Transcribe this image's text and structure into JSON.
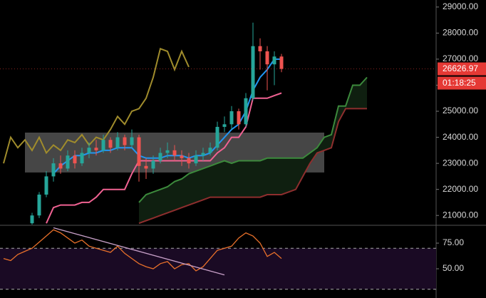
{
  "chart_data": [
    {
      "type": "candlestick",
      "xlim": [
        -0.5,
        60.7
      ],
      "ylim": [
        20650,
        29270
      ],
      "yticks": [
        {
          "value": 21000,
          "label": "21000.00"
        },
        {
          "value": 22000,
          "label": "22000.00"
        },
        {
          "value": 23000,
          "label": "23000.00"
        },
        {
          "value": 24000,
          "label": "24000.00"
        },
        {
          "value": 25000,
          "label": "25000.00"
        },
        {
          "value": 26000,
          "label": "26000.00"
        },
        {
          "value": 27000,
          "label": "27000.00"
        },
        {
          "value": 28000,
          "label": "28000.00"
        },
        {
          "value": 29000,
          "label": "29000.00"
        }
      ],
      "up_color": "#26a69a",
      "down_color": "#ef5350",
      "open": [
        null,
        null,
        null,
        null,
        20700,
        21000,
        21800,
        22500,
        23000,
        22800,
        23300,
        23000,
        23400,
        23600,
        23500,
        23900,
        23600,
        24000,
        23700,
        24000,
        22900,
        22800,
        23100,
        23400,
        23500,
        23300,
        23200,
        23000,
        23300,
        23400,
        23600,
        24400,
        24500,
        25000,
        24500,
        25500,
        27500,
        27300,
        26800,
        27100,
        null,
        null,
        null,
        null,
        null,
        null,
        null,
        null,
        null,
        null,
        null,
        null
      ],
      "high": [
        null,
        null,
        null,
        null,
        21100,
        21900,
        22700,
        23200,
        23300,
        23500,
        23500,
        23600,
        23800,
        23900,
        24100,
        24000,
        24200,
        24100,
        24300,
        24100,
        23200,
        23300,
        23600,
        23800,
        23700,
        23500,
        23400,
        23500,
        23600,
        23800,
        24600,
        24800,
        25200,
        25100,
        25700,
        28400,
        27800,
        27500,
        27300,
        27200,
        null,
        null,
        null,
        null,
        null,
        null,
        null,
        null,
        null,
        null,
        null,
        null
      ],
      "low": [
        null,
        null,
        null,
        null,
        20650,
        20900,
        21700,
        22300,
        22600,
        22700,
        22800,
        22900,
        23200,
        23300,
        23400,
        23400,
        23500,
        23500,
        23600,
        22300,
        22400,
        22600,
        23000,
        23200,
        23100,
        22900,
        22800,
        22900,
        23100,
        23300,
        23500,
        24200,
        24300,
        24300,
        24400,
        25400,
        26600,
        25800,
        26000,
        26500,
        null,
        null,
        null,
        null,
        null,
        null,
        null,
        null,
        null,
        null,
        null,
        null
      ],
      "close": [
        null,
        null,
        null,
        null,
        21000,
        21800,
        22500,
        23000,
        22800,
        23300,
        23000,
        23400,
        23600,
        23500,
        23900,
        23600,
        24000,
        23700,
        24000,
        22900,
        22800,
        23100,
        23400,
        23500,
        23300,
        23200,
        23000,
        23300,
        23400,
        23600,
        24400,
        24500,
        25000,
        24500,
        25500,
        27500,
        27300,
        26800,
        27100,
        26626.97,
        null,
        null,
        null,
        null,
        null,
        null,
        null,
        null,
        null,
        null,
        null,
        null
      ],
      "series": [
        {
          "color": "#2196f3",
          "values": [
            null,
            null,
            null,
            null,
            null,
            null,
            null,
            22600,
            22900,
            23100,
            23300,
            23300,
            23400,
            23400,
            23500,
            23500,
            23600,
            23600,
            23600,
            23300,
            23200,
            23200,
            23200,
            23300,
            23300,
            23300,
            23200,
            23300,
            23300,
            23400,
            23700,
            24000,
            24300,
            24500,
            25000,
            25800,
            26300,
            26600,
            27000,
            27000,
            null,
            null,
            null,
            null,
            null,
            null,
            null,
            null,
            null,
            null,
            null,
            null
          ]
        },
        {
          "color": "#f06292",
          "values": [
            null,
            null,
            null,
            null,
            null,
            null,
            20700,
            21300,
            21400,
            21400,
            21400,
            21500,
            21500,
            21700,
            22000,
            22000,
            22000,
            22000,
            22600,
            23100,
            23100,
            23100,
            23100,
            23100,
            23100,
            23100,
            23100,
            23100,
            23100,
            23100,
            23400,
            23600,
            24000,
            24000,
            24400,
            25500,
            25500,
            25500,
            25600,
            25700,
            null,
            null,
            null,
            null,
            null,
            null,
            null,
            null,
            null,
            null,
            null,
            null
          ]
        },
        {
          "color": "#a08c2c",
          "values": [
            23000,
            24000,
            23600,
            23900,
            23500,
            24000,
            23400,
            23700,
            23500,
            23900,
            23800,
            24100,
            23700,
            24000,
            23900,
            24300,
            24800,
            24500,
            25000,
            25100,
            25500,
            26300,
            27400,
            27300,
            26600,
            27300,
            26700,
            null,
            null,
            null,
            null,
            null,
            null,
            null,
            null,
            null,
            null,
            null,
            null,
            null,
            null,
            null,
            null,
            null,
            null,
            null,
            null,
            null,
            null,
            null,
            null,
            null
          ]
        },
        {
          "color": "#3c8a3c",
          "values": [
            null,
            null,
            null,
            null,
            null,
            null,
            null,
            null,
            null,
            null,
            null,
            null,
            null,
            null,
            null,
            null,
            null,
            null,
            null,
            21500,
            21800,
            21900,
            22000,
            22100,
            22300,
            22400,
            22600,
            22700,
            22800,
            22900,
            23000,
            23100,
            23000,
            23100,
            23100,
            23100,
            23100,
            23200,
            23200,
            23200,
            23200,
            23200,
            23200,
            23400,
            23600,
            24000,
            24100,
            25200,
            25200,
            26000,
            26000,
            26300
          ]
        },
        {
          "color": "#8e2e2e",
          "values": [
            null,
            null,
            null,
            null,
            null,
            null,
            null,
            null,
            null,
            null,
            null,
            null,
            null,
            null,
            null,
            null,
            null,
            null,
            null,
            20700,
            20800,
            20900,
            21000,
            21100,
            21200,
            21300,
            21400,
            21500,
            21600,
            21700,
            21700,
            21700,
            21700,
            21700,
            21700,
            21700,
            21700,
            21800,
            21800,
            21800,
            21900,
            22000,
            22500,
            23000,
            23400,
            23500,
            23600,
            24600,
            25100,
            25100,
            25100,
            25100
          ]
        }
      ],
      "cloud_color": "#0f1f10",
      "box": {
        "x": [
          3,
          45
        ],
        "y": [
          22650,
          24180
        ],
        "color": "rgba(200,200,200,0.35)"
      },
      "last_price": 26626.97,
      "countdown": "01:18:25",
      "price_label_color": "#e53935"
    },
    {
      "type": "line",
      "xlim": [
        -0.5,
        60.7
      ],
      "ylim": [
        21.5,
        92.4
      ],
      "yticks": [
        {
          "value": 50,
          "label": "50.00"
        },
        {
          "value": 75,
          "label": "75.00"
        }
      ],
      "bands": [
        30,
        70
      ],
      "band_color": "#1a0a24",
      "color": "#e8702a",
      "values": [
        60,
        58,
        64,
        67,
        70,
        76,
        82,
        88,
        85,
        80,
        75,
        78,
        72,
        70,
        68,
        66,
        72,
        65,
        60,
        55,
        52,
        50,
        55,
        57,
        50,
        54,
        55,
        48,
        52,
        60,
        68,
        70,
        72,
        80,
        85,
        82,
        75,
        62,
        66,
        60,
        null,
        null,
        null,
        null,
        null,
        null,
        null,
        null,
        null,
        null,
        null,
        null
      ],
      "trendline": {
        "x": [
          7,
          31
        ],
        "values": [
          90,
          44
        ],
        "color": "#c8a0c8"
      }
    }
  ]
}
